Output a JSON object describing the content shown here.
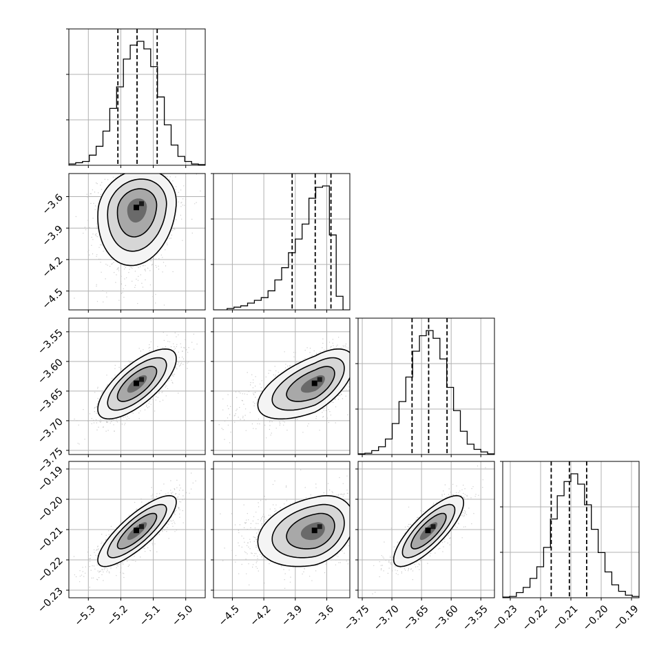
{
  "chart_data": {
    "type": "corner",
    "n_parameters": 4,
    "grid": true,
    "colors": {
      "marks": "#000000",
      "grid": "#b0b0b0",
      "scatter": "#b8b8b8"
    },
    "parameters": [
      {
        "range": [
          -5.36,
          -4.94
        ],
        "ticks": [
          -5.3,
          -5.2,
          -5.1,
          -5.0
        ],
        "tick_labels": [
          "−5.3",
          "−5.2",
          "−5.1",
          "−5.0"
        ],
        "quantiles": [
          -5.209,
          -5.15,
          -5.088
        ],
        "histogram": [
          1,
          2,
          3,
          8,
          15,
          27,
          45,
          62,
          84,
          95,
          98,
          92,
          78,
          54,
          32,
          16,
          7,
          3,
          1,
          0.5
        ]
      },
      {
        "range": [
          -4.68,
          -3.38
        ],
        "ticks": [
          -4.5,
          -4.2,
          -3.9,
          -3.6
        ],
        "tick_labels": [
          "−4.5",
          "−4.2",
          "−3.9",
          "−3.6"
        ],
        "quantiles": [
          -3.93,
          -3.71,
          -3.56
        ],
        "histogram": [
          0,
          0,
          1,
          2,
          3,
          5,
          7,
          9,
          14,
          22,
          31,
          42,
          52,
          63,
          82,
          90,
          91,
          55,
          10,
          0
        ]
      },
      {
        "range": [
          -3.757,
          -3.527
        ],
        "ticks": [
          -3.75,
          -3.7,
          -3.65,
          -3.6,
          -3.55
        ],
        "tick_labels": [
          "−3.75",
          "−3.70",
          "−3.65",
          "−3.60",
          "−3.55"
        ],
        "quantiles": [
          -3.666,
          -3.638,
          -3.607
        ],
        "histogram": [
          0.5,
          1,
          3,
          6,
          12,
          24,
          41,
          60,
          80,
          92,
          96,
          90,
          74,
          52,
          34,
          18,
          8,
          4,
          2,
          0.5
        ]
      },
      {
        "range": [
          -0.2325,
          -0.1875
        ],
        "ticks": [
          -0.23,
          -0.22,
          -0.21,
          -0.2,
          -0.19
        ],
        "tick_labels": [
          "−0.23",
          "−0.22",
          "−0.21",
          "−0.20",
          "−0.19"
        ],
        "quantiles": [
          -0.2165,
          -0.2105,
          -0.2048
        ],
        "histogram": [
          0.5,
          1,
          4,
          8,
          15,
          24,
          39,
          61,
          79,
          90,
          96,
          88,
          72,
          53,
          35,
          20,
          10,
          5,
          2,
          1
        ]
      }
    ],
    "correlations": [
      [
        1.0,
        0.15,
        0.72,
        0.82
      ],
      [
        0.15,
        1.0,
        0.6,
        0.3
      ],
      [
        0.72,
        0.6,
        1.0,
        0.8
      ],
      [
        0.82,
        0.3,
        0.8,
        1.0
      ]
    ],
    "skew": [
      0,
      -0.8,
      0,
      0
    ],
    "contour_levels": [
      0.5,
      1.0,
      1.5,
      2.0
    ],
    "samples_per_panel": 1400
  }
}
